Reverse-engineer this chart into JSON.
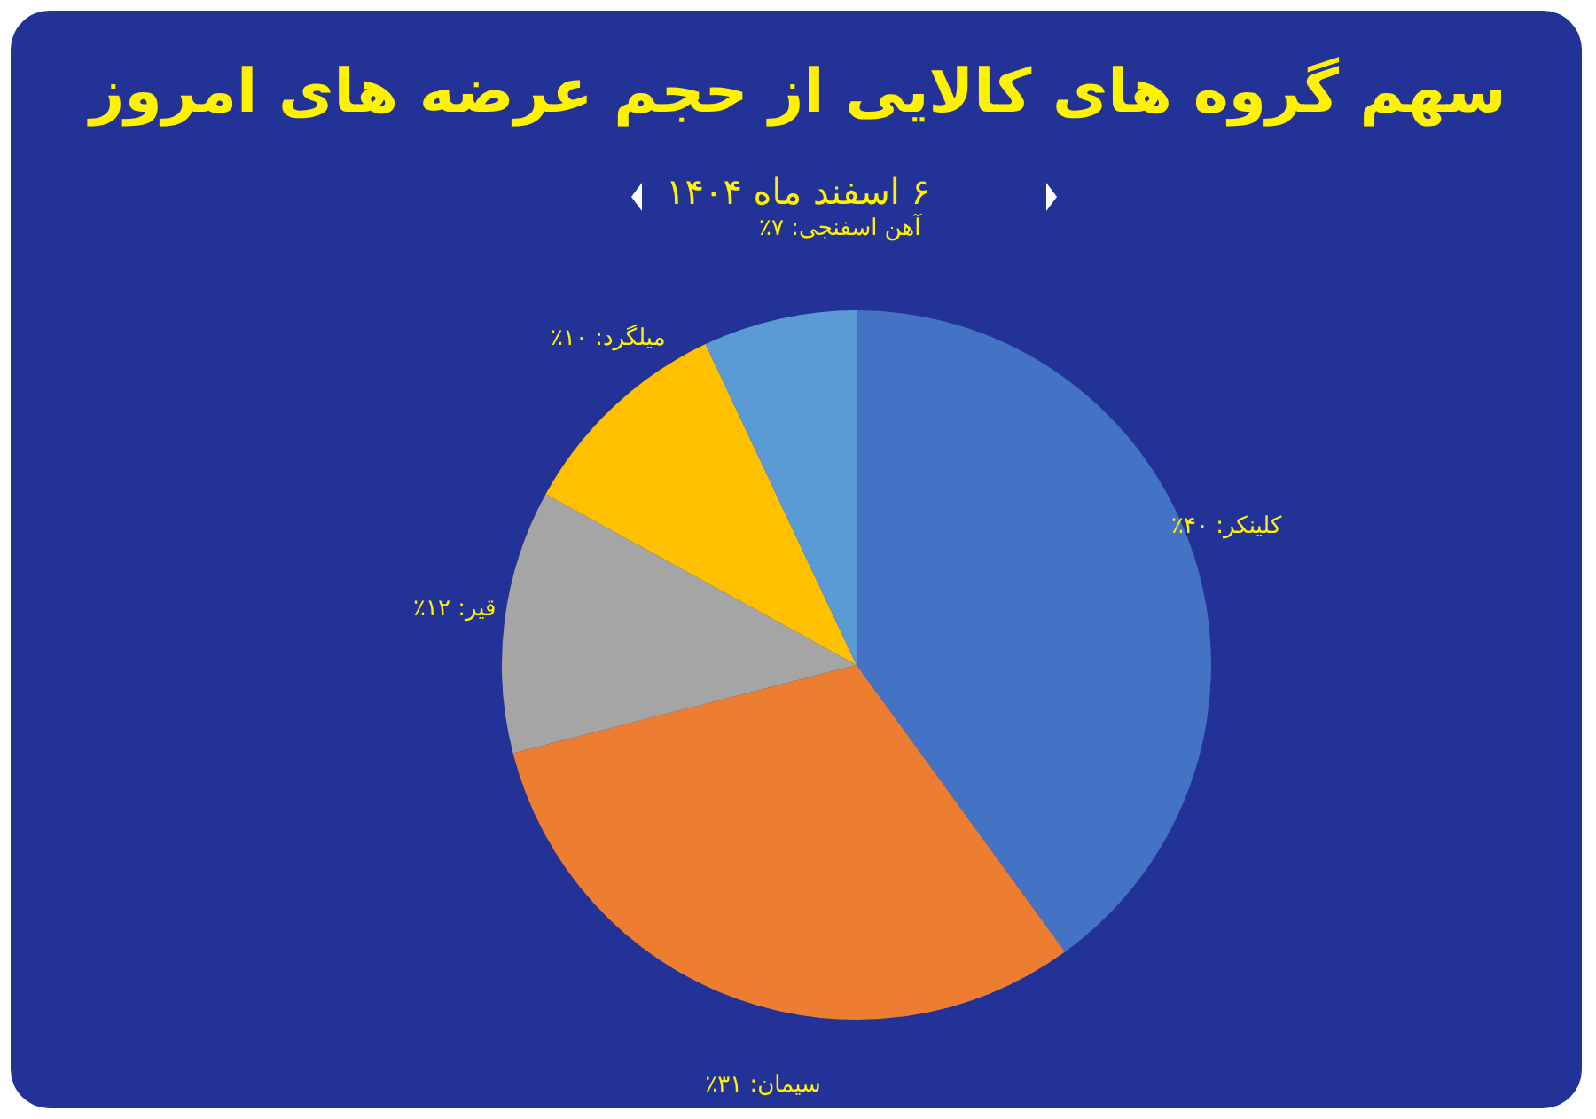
{
  "chart_data": {
    "type": "pie",
    "title": "سهم گروه های کالایی از حجم عرضه های امروز",
    "subtitle": "۶ اسفند ماه ۱۴۰۴",
    "categories": [
      "کلینکر",
      "سیمان",
      "قیر",
      "میلگرد",
      "آهن اسفنجی"
    ],
    "values": [
      40,
      31,
      12,
      10,
      7
    ],
    "colors": [
      "#4472c4",
      "#ed7d31",
      "#a5a5a5",
      "#ffc000",
      "#5b9bd5"
    ],
    "value_labels": [
      "۴۰٪",
      "۳۱٪",
      "۱۲٪",
      "۱۰٪",
      "۷٪"
    ],
    "legend": false
  }
}
